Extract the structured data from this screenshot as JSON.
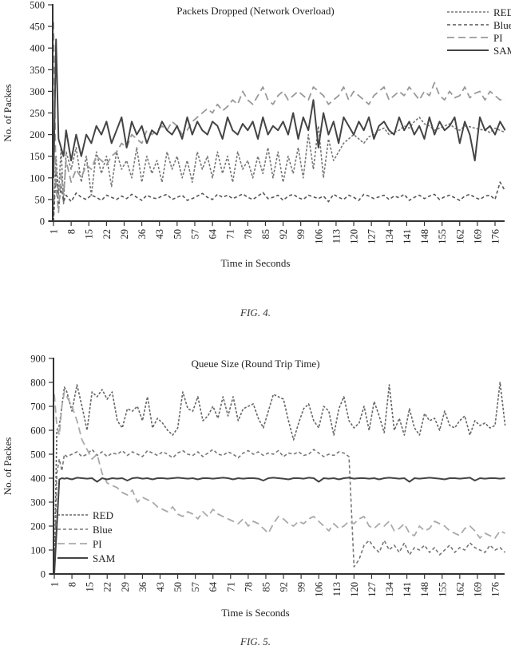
{
  "figures": [
    {
      "caption": "FIG. 4."
    },
    {
      "caption": "FIG. 5."
    }
  ],
  "chart_data": [
    {
      "type": "line",
      "title": "Packets Dropped (Network Overload)",
      "xlabel": "Time in Seconds",
      "ylabel": "No. of Packes",
      "ylim": [
        0,
        500
      ],
      "yticks": [
        0,
        50,
        100,
        150,
        200,
        250,
        300,
        350,
        400,
        450,
        500
      ],
      "xticks": [
        1,
        8,
        15,
        22,
        29,
        36,
        43,
        50,
        57,
        64,
        71,
        78,
        85,
        92,
        99,
        106,
        113,
        120,
        127,
        134,
        141,
        148,
        155,
        162,
        169,
        176
      ],
      "xlim": [
        1,
        180
      ],
      "grid": false,
      "legend_position": "upper right",
      "x": [
        1,
        2,
        3,
        4,
        5,
        6,
        8,
        10,
        12,
        14,
        16,
        18,
        20,
        22,
        24,
        26,
        28,
        30,
        32,
        34,
        36,
        38,
        40,
        42,
        44,
        46,
        48,
        50,
        52,
        54,
        56,
        58,
        60,
        62,
        64,
        66,
        68,
        70,
        72,
        74,
        76,
        78,
        80,
        82,
        84,
        86,
        88,
        90,
        92,
        94,
        96,
        98,
        100,
        102,
        104,
        106,
        108,
        110,
        112,
        114,
        116,
        118,
        120,
        122,
        124,
        126,
        128,
        130,
        132,
        134,
        136,
        138,
        140,
        142,
        144,
        146,
        148,
        150,
        152,
        154,
        156,
        158,
        160,
        162,
        164,
        166,
        168,
        170,
        172,
        174,
        176,
        178,
        180
      ],
      "series": [
        {
          "name": "RED",
          "style": "short-dash",
          "color": "#777777",
          "values": [
            10,
            150,
            60,
            170,
            40,
            160,
            120,
            170,
            90,
            150,
            60,
            160,
            110,
            150,
            80,
            160,
            120,
            140,
            100,
            170,
            90,
            150,
            110,
            140,
            90,
            160,
            120,
            150,
            100,
            140,
            90,
            160,
            120,
            150,
            100,
            160,
            110,
            150,
            90,
            160,
            120,
            140,
            100,
            150,
            110,
            170,
            100,
            160,
            90,
            150,
            110,
            170,
            100,
            200,
            120,
            220,
            100,
            190,
            140,
            160,
            180,
            190,
            200,
            190,
            180,
            195,
            200,
            210,
            215,
            200,
            205,
            210,
            220,
            215,
            230,
            240,
            225,
            220,
            210,
            215,
            220,
            225,
            215,
            210,
            220,
            218,
            215,
            212,
            210,
            205,
            215,
            210,
            205
          ]
        },
        {
          "name": "Blue",
          "style": "dash",
          "color": "#555555",
          "values": [
            0,
            120,
            30,
            80,
            45,
            60,
            45,
            65,
            55,
            50,
            60,
            55,
            48,
            60,
            55,
            50,
            58,
            52,
            62,
            55,
            48,
            60,
            54,
            52,
            58,
            62,
            50,
            55,
            60,
            48,
            52,
            58,
            64,
            55,
            50,
            62,
            55,
            60,
            52,
            57,
            63,
            55,
            50,
            58,
            66,
            52,
            55,
            60,
            48,
            58,
            62,
            54,
            50,
            60,
            56,
            52,
            58,
            45,
            62,
            55,
            50,
            60,
            55,
            48,
            62,
            58,
            52,
            56,
            60,
            50,
            58,
            54,
            62,
            48,
            55,
            60,
            52,
            58,
            62,
            50,
            56,
            60,
            54,
            48,
            58,
            62,
            55,
            50,
            58,
            60,
            50,
            90,
            70
          ]
        },
        {
          "name": "PI",
          "style": "long-dash",
          "color": "#999999",
          "values": [
            460,
            80,
            20,
            110,
            60,
            140,
            90,
            120,
            100,
            130,
            120,
            150,
            140,
            130,
            150,
            160,
            180,
            170,
            200,
            190,
            180,
            210,
            200,
            210,
            220,
            210,
            230,
            220,
            200,
            210,
            230,
            240,
            250,
            260,
            250,
            270,
            255,
            265,
            280,
            270,
            300,
            280,
            270,
            290,
            310,
            280,
            270,
            290,
            300,
            280,
            290,
            300,
            290,
            280,
            310,
            300,
            290,
            270,
            280,
            290,
            310,
            280,
            300,
            290,
            280,
            270,
            290,
            300,
            310,
            280,
            290,
            300,
            290,
            310,
            295,
            280,
            300,
            290,
            320,
            290,
            280,
            300,
            285,
            290,
            310,
            285,
            295,
            300,
            280,
            300,
            290,
            280,
            285
          ]
        },
        {
          "name": "SAM",
          "style": "solid",
          "color": "#444444",
          "values": [
            100,
            420,
            190,
            170,
            150,
            210,
            140,
            200,
            150,
            200,
            180,
            220,
            200,
            230,
            180,
            210,
            240,
            170,
            230,
            200,
            220,
            180,
            210,
            200,
            230,
            210,
            200,
            220,
            190,
            240,
            200,
            230,
            210,
            200,
            230,
            220,
            190,
            240,
            210,
            200,
            225,
            210,
            230,
            190,
            240,
            200,
            220,
            210,
            230,
            200,
            250,
            190,
            240,
            210,
            280,
            170,
            250,
            200,
            230,
            180,
            240,
            220,
            200,
            230,
            210,
            240,
            190,
            220,
            230,
            210,
            200,
            240,
            210,
            230,
            200,
            220,
            190,
            240,
            200,
            230,
            210,
            220,
            240,
            180,
            230,
            200,
            140,
            240,
            210,
            220,
            200,
            230,
            210
          ]
        }
      ]
    },
    {
      "type": "line",
      "title": "Queue Size (Round Trip Time)",
      "xlabel": "Time is Seconds",
      "ylabel": "No. of Packes",
      "ylim": [
        0,
        900
      ],
      "yticks": [
        0,
        100,
        200,
        300,
        400,
        500,
        600,
        700,
        800,
        900
      ],
      "xticks": [
        1,
        8,
        15,
        22,
        29,
        36,
        43,
        50,
        57,
        64,
        71,
        78,
        85,
        92,
        99,
        106,
        113,
        120,
        127,
        134,
        141,
        148,
        155,
        162,
        169,
        176
      ],
      "xlim": [
        1,
        180
      ],
      "grid": false,
      "legend_position": "lower left",
      "x": [
        1,
        2,
        3,
        4,
        5,
        6,
        8,
        10,
        12,
        14,
        16,
        18,
        20,
        22,
        24,
        26,
        28,
        30,
        32,
        34,
        36,
        38,
        40,
        42,
        44,
        46,
        48,
        50,
        52,
        54,
        56,
        58,
        60,
        62,
        64,
        66,
        68,
        70,
        72,
        74,
        76,
        78,
        80,
        82,
        84,
        86,
        88,
        90,
        92,
        94,
        96,
        98,
        100,
        102,
        104,
        106,
        108,
        110,
        112,
        114,
        116,
        118,
        120,
        122,
        124,
        126,
        128,
        130,
        132,
        134,
        136,
        138,
        140,
        142,
        144,
        146,
        148,
        150,
        152,
        154,
        156,
        158,
        160,
        162,
        164,
        166,
        168,
        170,
        172,
        174,
        176,
        178,
        180
      ],
      "series": [
        {
          "name": "RED",
          "style": "short-dash",
          "color": "#666666",
          "values": [
            0,
            600,
            620,
            700,
            780,
            760,
            680,
            790,
            700,
            600,
            760,
            740,
            770,
            730,
            760,
            640,
            610,
            690,
            680,
            700,
            640,
            740,
            610,
            650,
            630,
            600,
            580,
            610,
            760,
            690,
            680,
            740,
            640,
            660,
            700,
            650,
            740,
            660,
            740,
            640,
            690,
            700,
            710,
            650,
            610,
            680,
            750,
            740,
            730,
            640,
            560,
            630,
            690,
            710,
            640,
            610,
            700,
            680,
            580,
            690,
            740,
            640,
            610,
            630,
            700,
            600,
            720,
            660,
            590,
            790,
            600,
            650,
            580,
            690,
            610,
            580,
            670,
            640,
            650,
            600,
            680,
            620,
            610,
            640,
            660,
            580,
            640,
            620,
            630,
            610,
            620,
            800,
            620
          ]
        },
        {
          "name": "Blue",
          "style": "dash",
          "color": "#777777",
          "values": [
            0,
            420,
            480,
            430,
            500,
            490,
            500,
            510,
            490,
            500,
            520,
            495,
            510,
            490,
            505,
            500,
            515,
            495,
            510,
            500,
            490,
            515,
            505,
            495,
            510,
            500,
            485,
            505,
            515,
            500,
            495,
            510,
            490,
            505,
            520,
            500,
            495,
            510,
            500,
            485,
            505,
            515,
            500,
            510,
            495,
            505,
            500,
            515,
            490,
            505,
            500,
            510,
            495,
            500,
            520,
            505,
            490,
            500,
            495,
            510,
            505,
            490,
            30,
            60,
            120,
            140,
            110,
            90,
            140,
            100,
            120,
            90,
            130,
            80,
            110,
            100,
            120,
            90,
            110,
            80,
            100,
            120,
            90,
            110,
            100,
            130,
            110,
            100,
            90,
            120,
            100,
            110,
            90
          ]
        },
        {
          "name": "PI",
          "style": "long-dash",
          "color": "#aaaaaa",
          "values": [
            750,
            620,
            580,
            700,
            760,
            740,
            700,
            640,
            560,
            520,
            480,
            500,
            420,
            380,
            370,
            360,
            340,
            330,
            350,
            300,
            320,
            310,
            300,
            280,
            270,
            260,
            280,
            250,
            240,
            260,
            250,
            230,
            260,
            240,
            270,
            250,
            240,
            230,
            220,
            210,
            230,
            200,
            220,
            210,
            190,
            170,
            210,
            240,
            230,
            210,
            200,
            220,
            210,
            230,
            240,
            220,
            200,
            180,
            210,
            190,
            200,
            220,
            210,
            230,
            240,
            200,
            190,
            210,
            200,
            220,
            180,
            190,
            210,
            170,
            160,
            200,
            180,
            190,
            220,
            210,
            200,
            180,
            170,
            160,
            190,
            200,
            180,
            150,
            170,
            160,
            150,
            180,
            170
          ]
        },
        {
          "name": "SAM",
          "style": "solid",
          "color": "#444444",
          "values": [
            0,
            200,
            395,
            400,
            398,
            400,
            395,
            402,
            400,
            398,
            400,
            385,
            400,
            395,
            400,
            398,
            400,
            390,
            400,
            402,
            398,
            400,
            395,
            400,
            400,
            398,
            400,
            402,
            400,
            398,
            400,
            395,
            400,
            400,
            398,
            400,
            402,
            400,
            395,
            400,
            398,
            400,
            400,
            398,
            390,
            400,
            402,
            400,
            398,
            395,
            400,
            400,
            398,
            402,
            400,
            385,
            400,
            398,
            400,
            395,
            400,
            402,
            398,
            400,
            400,
            398,
            400,
            395,
            400,
            402,
            400,
            398,
            400,
            385,
            400,
            398,
            400,
            402,
            400,
            398,
            395,
            400,
            400,
            398,
            400,
            402,
            390,
            400,
            398,
            400,
            400,
            398,
            400
          ]
        }
      ]
    }
  ]
}
